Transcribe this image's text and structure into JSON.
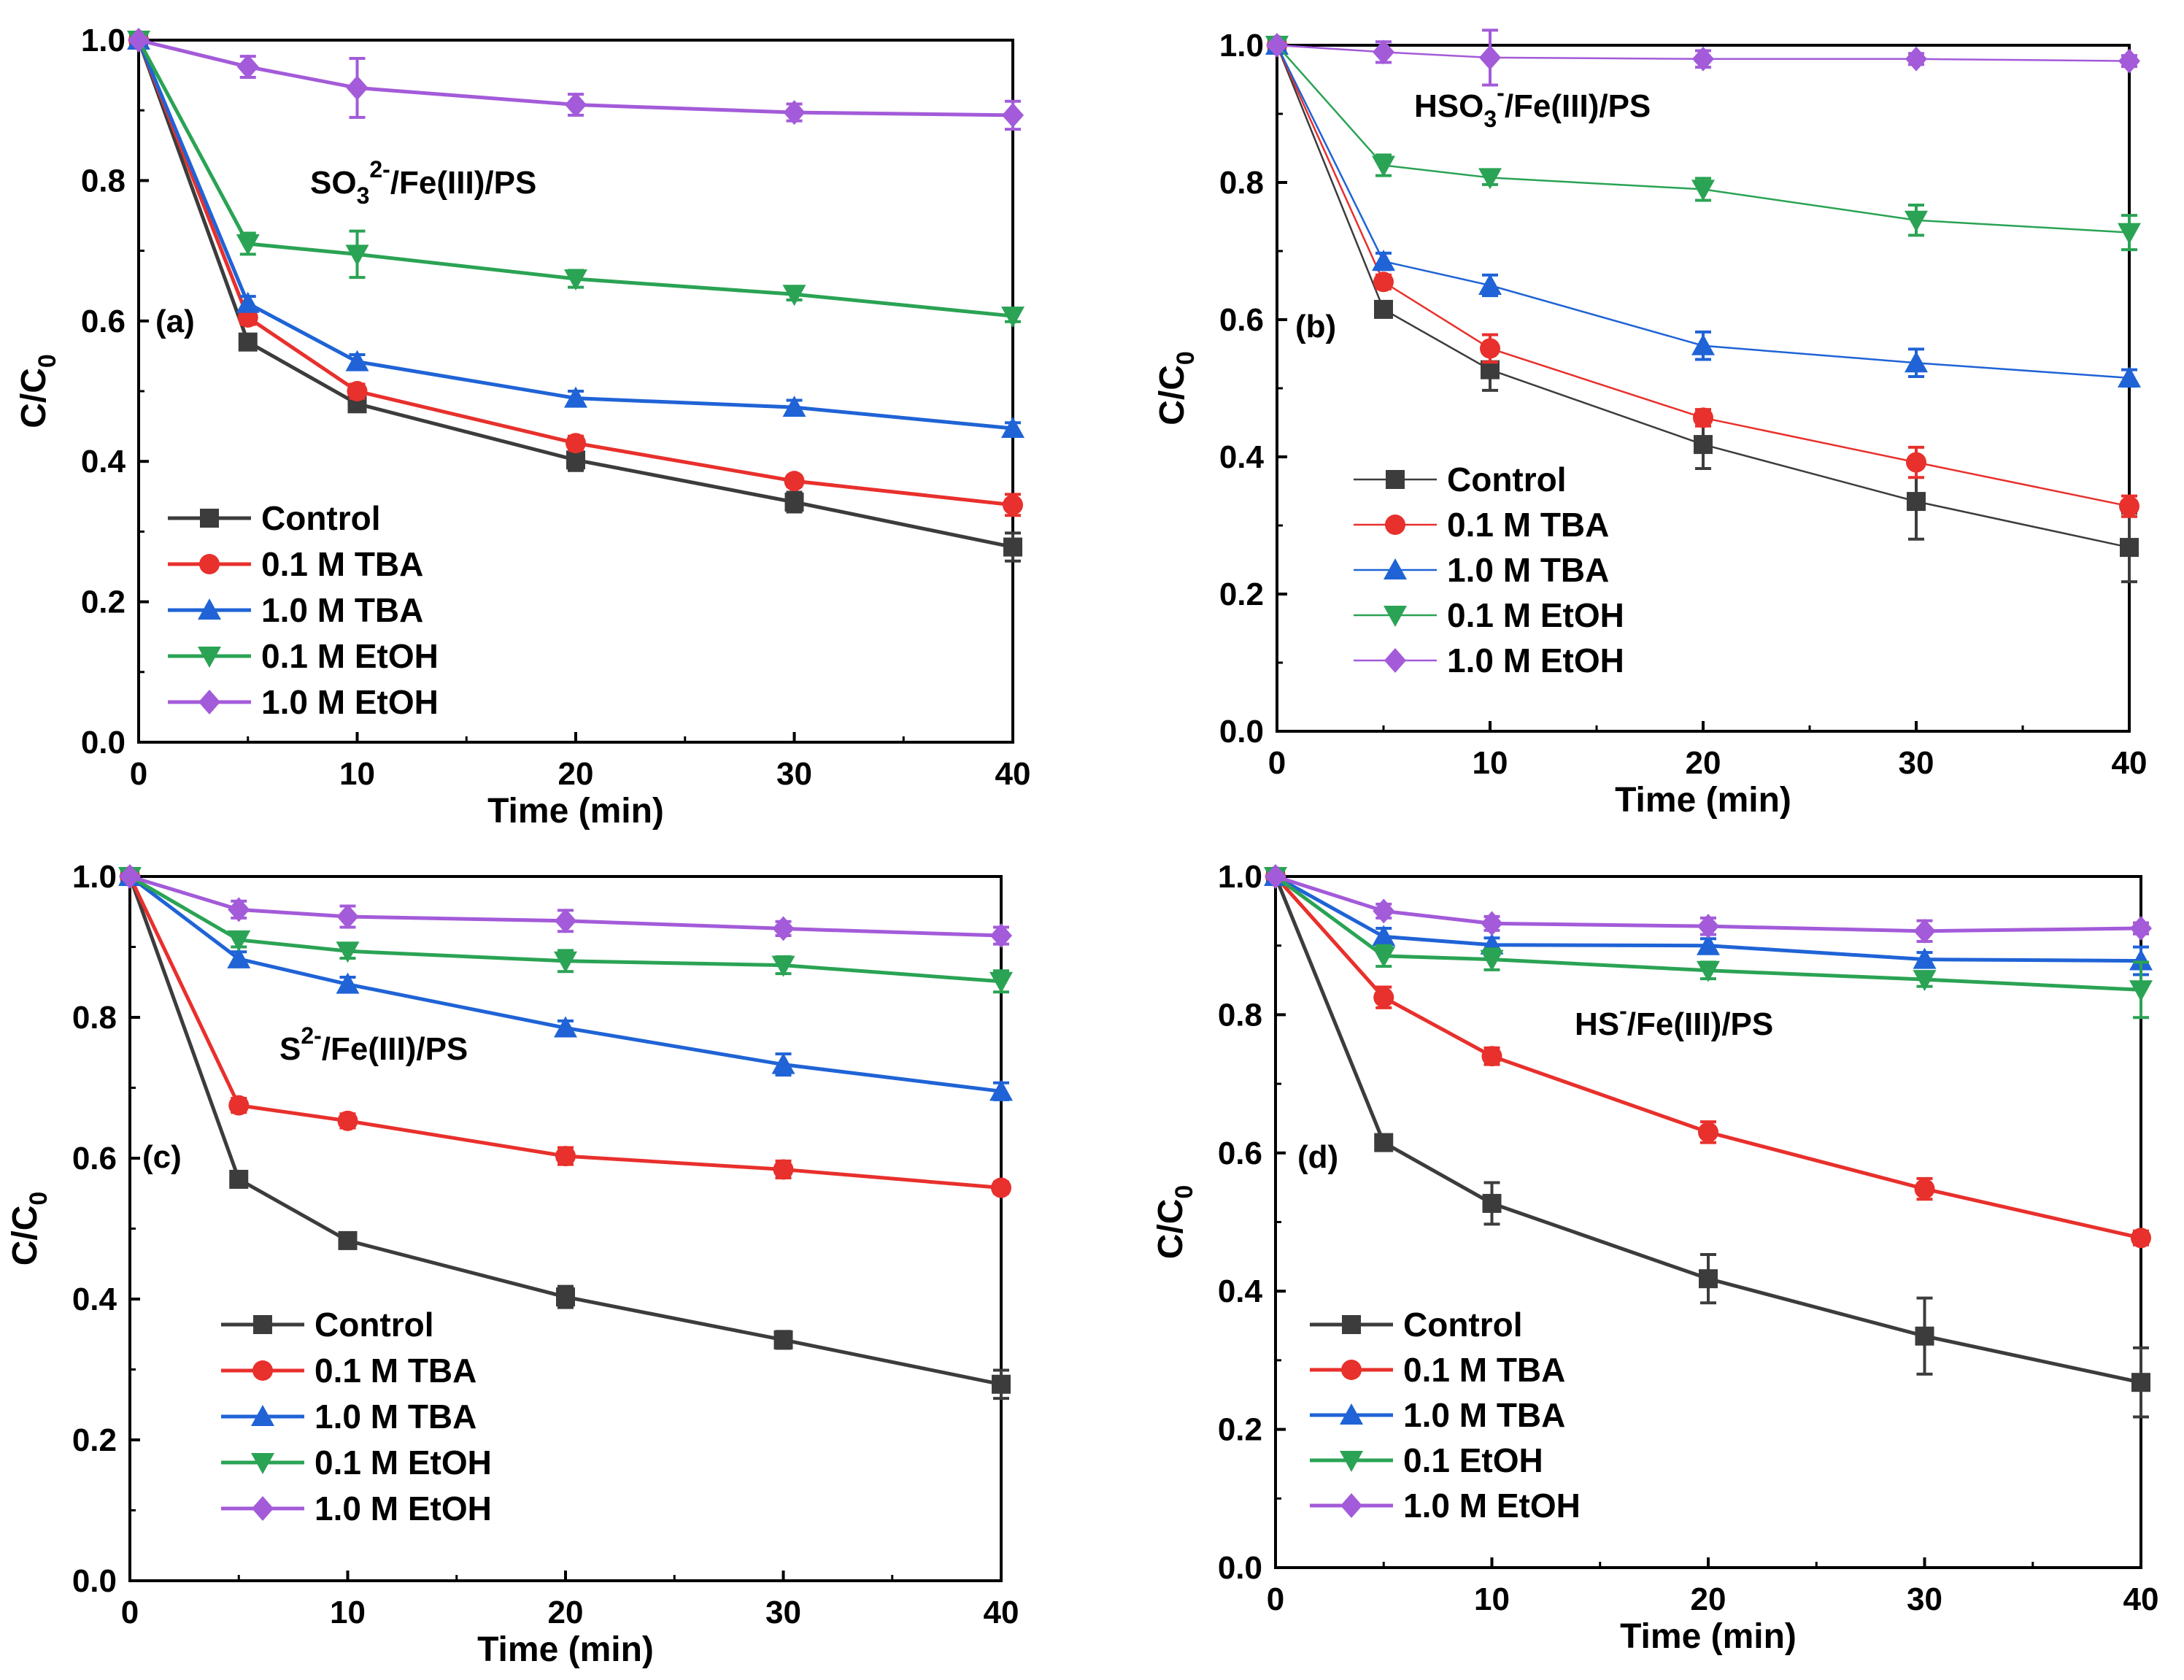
{
  "colors": {
    "control": "#3c3c3c",
    "tba01": "#e8302c",
    "tba10": "#1f63d6",
    "etoh01": "#2aa354",
    "etoh10": "#a35bd9",
    "axis": "#000000"
  },
  "chart_data": [
    {
      "type": "line",
      "panel_label": "(a)",
      "annotation": {
        "base": "SO",
        "sub": "3",
        "sup": "2-",
        "rest": "/Fe(III)/PS"
      },
      "xlabel": "Time (min)",
      "ylabel": {
        "base": "C/C",
        "sub": "0"
      },
      "xlim": [
        0,
        40
      ],
      "ylim": [
        0,
        1.0
      ],
      "x_ticks": [
        0,
        10,
        20,
        30,
        40
      ],
      "x_tick_labels": [
        "0",
        "10",
        "20",
        "30",
        "40"
      ],
      "y_ticks": [
        0,
        0.2,
        0.4,
        0.6,
        0.8,
        1.0
      ],
      "y_tick_labels": [
        "0.0",
        "0.2",
        "0.4",
        "0.6",
        "0.8",
        "1.0"
      ],
      "x": [
        0,
        5,
        10,
        20,
        30,
        40
      ],
      "legend_position": "lower-left",
      "series": [
        {
          "name": "Control",
          "marker": "square",
          "color_key": "control",
          "values": [
            1.0,
            0.57,
            0.482,
            0.402,
            0.342,
            0.278
          ],
          "errors": [
            0,
            0.008,
            0.01,
            0.015,
            0.014,
            0.02
          ]
        },
        {
          "name": "0.1 M TBA",
          "marker": "circle",
          "color_key": "tba01",
          "values": [
            1.0,
            0.605,
            0.5,
            0.426,
            0.372,
            0.338
          ],
          "errors": [
            0,
            0.01,
            0.01,
            0.01,
            0.008,
            0.015
          ]
        },
        {
          "name": "1.0 M TBA",
          "marker": "triangle-up",
          "color_key": "tba10",
          "values": [
            1.0,
            0.625,
            0.542,
            0.49,
            0.477,
            0.447
          ],
          "errors": [
            0,
            0.01,
            0.01,
            0.01,
            0.01,
            0.008
          ]
        },
        {
          "name": "0.1 M EtOH",
          "marker": "triangle-down",
          "color_key": "etoh01",
          "values": [
            1.0,
            0.71,
            0.695,
            0.66,
            0.638,
            0.607
          ],
          "errors": [
            0,
            0.015,
            0.033,
            0.012,
            0.008,
            0.008
          ]
        },
        {
          "name": "1.0 M EtOH",
          "marker": "diamond",
          "color_key": "etoh10",
          "values": [
            1.0,
            0.962,
            0.932,
            0.908,
            0.897,
            0.893
          ],
          "errors": [
            0,
            0.015,
            0.042,
            0.015,
            0.012,
            0.02
          ]
        }
      ]
    },
    {
      "type": "line",
      "panel_label": "(b)",
      "annotation": {
        "base": "HSO",
        "sub": "3",
        "sup": "-",
        "rest": "/Fe(III)/PS"
      },
      "xlabel": "Time (min)",
      "ylabel": {
        "base": "C/C",
        "sub": "0"
      },
      "xlim": [
        0,
        40
      ],
      "ylim": [
        0,
        1.0
      ],
      "x_ticks": [
        0,
        10,
        20,
        30,
        40
      ],
      "x_tick_labels": [
        "0",
        "10",
        "20",
        "30",
        "40"
      ],
      "y_ticks": [
        0,
        0.2,
        0.4,
        0.6,
        0.8,
        1.0
      ],
      "y_tick_labels": [
        "0.0",
        "0.2",
        "0.4",
        "0.6",
        "0.8",
        "1.0"
      ],
      "x": [
        0,
        5,
        10,
        20,
        30,
        40
      ],
      "legend_position": "lower-left",
      "series": [
        {
          "name": "Control",
          "marker": "square",
          "color_key": "control",
          "values": [
            1.0,
            0.615,
            0.527,
            0.418,
            0.335,
            0.268
          ],
          "errors": [
            0,
            0.01,
            0.03,
            0.035,
            0.055,
            0.05
          ]
        },
        {
          "name": "0.1 M TBA",
          "marker": "circle",
          "color_key": "tba01",
          "values": [
            1.0,
            0.655,
            0.558,
            0.457,
            0.392,
            0.328
          ],
          "errors": [
            0,
            0.01,
            0.02,
            0.012,
            0.022,
            0.015
          ]
        },
        {
          "name": "1.0 M TBA",
          "marker": "triangle-up",
          "color_key": "tba10",
          "values": [
            1.0,
            0.685,
            0.65,
            0.562,
            0.537,
            0.515
          ],
          "errors": [
            0,
            0.012,
            0.015,
            0.02,
            0.02,
            0.012
          ]
        },
        {
          "name": "0.1 M EtOH",
          "marker": "triangle-down",
          "color_key": "etoh01",
          "values": [
            1.0,
            0.825,
            0.807,
            0.79,
            0.745,
            0.727
          ],
          "errors": [
            0,
            0.015,
            0.01,
            0.016,
            0.022,
            0.025
          ]
        },
        {
          "name": "1.0 M EtOH",
          "marker": "diamond",
          "color_key": "etoh10",
          "values": [
            1.0,
            0.99,
            0.982,
            0.98,
            0.98,
            0.977
          ],
          "errors": [
            0,
            0.015,
            0.04,
            0.012,
            0.008,
            0.008
          ]
        }
      ]
    },
    {
      "type": "line",
      "panel_label": "(c)",
      "annotation": {
        "base": "S",
        "sub": "",
        "sup": "2-",
        "rest": "/Fe(III)/PS"
      },
      "xlabel": "Time (min)",
      "ylabel": {
        "base": "C/C",
        "sub": "0"
      },
      "xlim": [
        0,
        40
      ],
      "ylim": [
        0,
        1.0
      ],
      "x_ticks": [
        0,
        10,
        20,
        30,
        40
      ],
      "x_tick_labels": [
        "0",
        "10",
        "20",
        "30",
        "40"
      ],
      "y_ticks": [
        0,
        0.2,
        0.4,
        0.6,
        0.8,
        1.0
      ],
      "y_tick_labels": [
        "0.0",
        "0.2",
        "0.4",
        "0.6",
        "0.8",
        "1.0"
      ],
      "x": [
        0,
        5,
        10,
        20,
        30,
        40
      ],
      "legend_position": "lower-left",
      "series": [
        {
          "name": "Control",
          "marker": "square",
          "color_key": "control",
          "values": [
            1.0,
            0.57,
            0.483,
            0.403,
            0.342,
            0.279
          ],
          "errors": [
            0,
            0.008,
            0.01,
            0.015,
            0.012,
            0.02
          ]
        },
        {
          "name": "0.1 M TBA",
          "marker": "circle",
          "color_key": "tba01",
          "values": [
            1.0,
            0.675,
            0.653,
            0.603,
            0.584,
            0.558
          ],
          "errors": [
            0,
            0.01,
            0.01,
            0.012,
            0.012,
            0.008
          ]
        },
        {
          "name": "1.0 M TBA",
          "marker": "triangle-up",
          "color_key": "tba10",
          "values": [
            1.0,
            0.883,
            0.847,
            0.785,
            0.733,
            0.695
          ],
          "errors": [
            0,
            0.01,
            0.01,
            0.01,
            0.015,
            0.012
          ]
        },
        {
          "name": "0.1 M EtOH",
          "marker": "triangle-down",
          "color_key": "etoh01",
          "values": [
            1.0,
            0.91,
            0.894,
            0.88,
            0.874,
            0.851
          ],
          "errors": [
            0,
            0.01,
            0.01,
            0.015,
            0.012,
            0.015
          ]
        },
        {
          "name": "1.0 M EtOH",
          "marker": "diamond",
          "color_key": "etoh10",
          "values": [
            1.0,
            0.953,
            0.943,
            0.937,
            0.926,
            0.916
          ],
          "errors": [
            0,
            0.012,
            0.015,
            0.015,
            0.01,
            0.012
          ]
        }
      ]
    },
    {
      "type": "line",
      "panel_label": "(d)",
      "annotation": {
        "base": "HS",
        "sub": "",
        "sup": "-",
        "rest": "/Fe(III)/PS"
      },
      "xlabel": "Time (min)",
      "ylabel": {
        "base": "C/C",
        "sub": "0"
      },
      "xlim": [
        0,
        40
      ],
      "ylim": [
        0,
        1.0
      ],
      "x_ticks": [
        0,
        10,
        20,
        30,
        40
      ],
      "x_tick_labels": [
        "0",
        "10",
        "20",
        "30",
        "40"
      ],
      "y_ticks": [
        0,
        0.2,
        0.4,
        0.6,
        0.8,
        1.0
      ],
      "y_tick_labels": [
        "0.0",
        "0.2",
        "0.4",
        "0.6",
        "0.8",
        "1.0"
      ],
      "x": [
        0,
        5,
        10,
        20,
        30,
        40
      ],
      "legend_position": "lower-left",
      "series": [
        {
          "name": "Control",
          "marker": "square",
          "color_key": "control",
          "values": [
            1.0,
            0.615,
            0.527,
            0.418,
            0.335,
            0.268
          ],
          "errors": [
            0,
            0.01,
            0.03,
            0.035,
            0.055,
            0.05
          ]
        },
        {
          "name": "0.1 M TBA",
          "marker": "circle",
          "color_key": "tba01",
          "values": [
            1.0,
            0.825,
            0.74,
            0.63,
            0.548,
            0.477
          ],
          "errors": [
            0,
            0.015,
            0.012,
            0.015,
            0.015,
            0.01
          ]
        },
        {
          "name": "1.0 M TBA",
          "marker": "triangle-up",
          "color_key": "tba10",
          "values": [
            1.0,
            0.913,
            0.901,
            0.9,
            0.88,
            0.878
          ],
          "errors": [
            0,
            0.012,
            0.01,
            0.01,
            0.01,
            0.02
          ]
        },
        {
          "name": "0.1 EtOH",
          "marker": "triangle-down",
          "color_key": "etoh01",
          "values": [
            1.0,
            0.885,
            0.88,
            0.864,
            0.851,
            0.836
          ],
          "errors": [
            0,
            0.015,
            0.015,
            0.012,
            0.01,
            0.04
          ]
        },
        {
          "name": "1.0 M EtOH",
          "marker": "diamond",
          "color_key": "etoh10",
          "values": [
            1.0,
            0.95,
            0.932,
            0.928,
            0.921,
            0.925
          ],
          "errors": [
            0,
            0.01,
            0.01,
            0.012,
            0.015,
            0.008
          ]
        }
      ]
    }
  ]
}
